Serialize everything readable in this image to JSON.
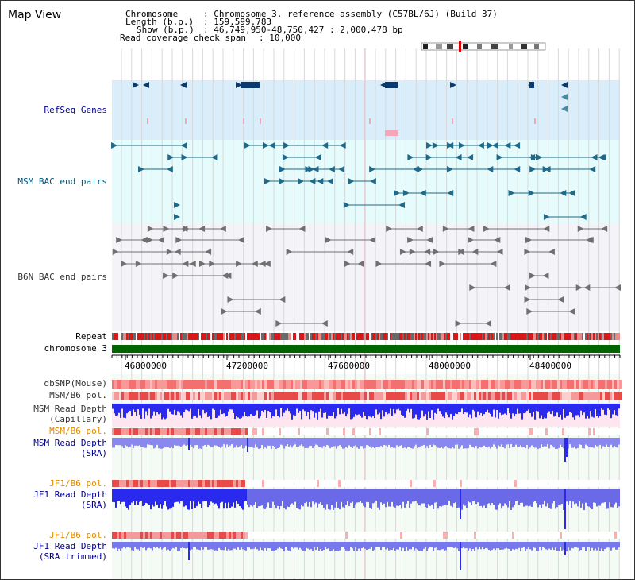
{
  "title": "Map View",
  "info": {
    "chromosome_key": "Chromosome",
    "chromosome_val": ": Chromosome 3, reference assembly (C57BL/6J) (Build 37)",
    "length_key": "Length (b.p.)",
    "length_val": ": 159,599,783",
    "show_key": "Show (b.p.)",
    "show_val": ": 46,749,950-48,750,427 : 2,000,478 bp",
    "read_key": "Read coverage check span",
    "read_val": ": 10,000"
  },
  "tracks": {
    "refseq": "RefSeq Genes",
    "msm_bac": "MSM BAC end pairs",
    "b6n_bac": "B6N BAC end pairs",
    "repeat": "Repeat",
    "chromosome": "chromosome 3",
    "dbsnp": "dbSNP(Mouse)",
    "msm_pol": "MSM/B6 pol.",
    "msm_depth_cap_1": "MSM Read Depth",
    "msm_depth_cap_2": "(Capillary)",
    "msm_pol_2": "MSM/B6 pol.",
    "msm_depth_sra_1": "MSM Read Depth",
    "msm_depth_sra_2": "(SRA)",
    "jf1_pol_1": "JF1/B6 pol.",
    "jf1_depth_sra_1": "JF1 Read Depth",
    "jf1_depth_sra_2": "(SRA)",
    "jf1_pol_2": "JF1/B6 pol.",
    "jf1_depth_trim_1": "JF1 Read Depth",
    "jf1_depth_trim_2": "(SRA trimmed)"
  },
  "axis": {
    "ticks": [
      "46800000",
      "47200000",
      "47600000",
      "48000000",
      "48400000"
    ]
  },
  "colors": {
    "refseq_bg": "#d9eefa",
    "msm_bg": "#e6fbfb",
    "b6n_bg": "#f4f4f8",
    "gene": "#0a3a6e",
    "bac_teal": "#1f6a8a",
    "bac_gray": "#707070",
    "chromosome_bar": "#006400",
    "depth_blue": "#2a2aee",
    "depth_light": "#8888ee",
    "pol_red": "#e04040",
    "label_navy": "#00008b",
    "label_orange": "#e08a00"
  }
}
